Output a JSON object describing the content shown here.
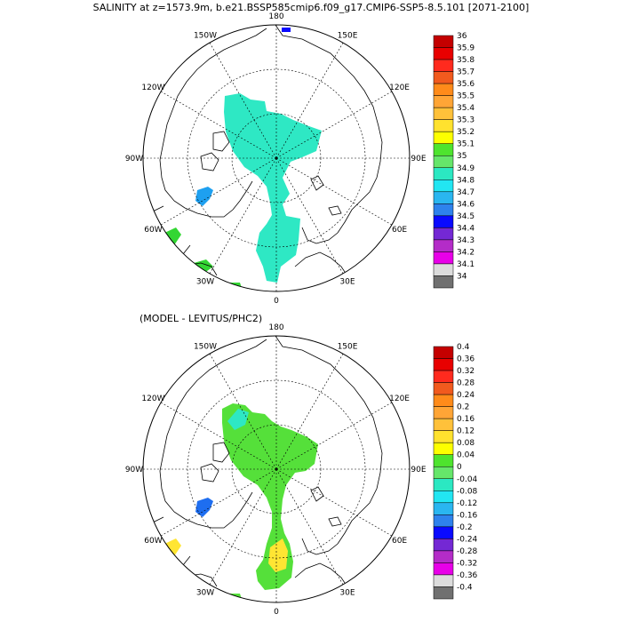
{
  "main_title": "SALINITY at z=1573.9m, b.e21.BSSP585cmip6.f09_g17.CMIP6-SSP5-8.5.101 [2071-2100]",
  "diff_title": "(MODEL - LEVITUS/PHC2)",
  "longitude_labels": [
    "180",
    "150E",
    "120E",
    "90E",
    "60E",
    "30E",
    "0",
    "30W",
    "60W",
    "90W",
    "120W",
    "150W"
  ],
  "top_colorbar": {
    "labels": [
      "36",
      "35.9",
      "35.8",
      "35.7",
      "35.6",
      "35.5",
      "35.4",
      "35.3",
      "35.2",
      "35.1",
      "35",
      "34.9",
      "34.8",
      "34.7",
      "34.6",
      "34.5",
      "34.4",
      "34.3",
      "34.2",
      "34.1",
      "34"
    ],
    "colors": [
      "#c40000",
      "#e80000",
      "#ff2a1e",
      "#f15a1e",
      "#ff8b1a",
      "#ffa536",
      "#ffc13a",
      "#ffe22e",
      "#fdff00",
      "#4ee42e",
      "#66e66a",
      "#2be8c2",
      "#22e6f2",
      "#2ab6f0",
      "#2e82ec",
      "#0a0aff",
      "#7428d4",
      "#b42cc8",
      "#e800e8",
      "#dcdcdc",
      "#707070"
    ]
  },
  "bottom_colorbar": {
    "labels": [
      "0.4",
      "0.36",
      "0.32",
      "0.28",
      "0.24",
      "0.2",
      "0.16",
      "0.12",
      "0.08",
      "0.04",
      "0",
      "-0.04",
      "-0.08",
      "-0.12",
      "-0.16",
      "-0.2",
      "-0.24",
      "-0.28",
      "-0.32",
      "-0.36",
      "-0.4"
    ],
    "colors": [
      "#c40000",
      "#e80000",
      "#ff2a1e",
      "#f15a1e",
      "#ff8b1a",
      "#ffa536",
      "#ffc13a",
      "#ffe22e",
      "#fdff00",
      "#4ee42e",
      "#66e66a",
      "#2be8c2",
      "#22e6f2",
      "#2ab6f0",
      "#2e82ec",
      "#0a0aff",
      "#7428d4",
      "#b42cc8",
      "#e800e8",
      "#dcdcdc",
      "#707070"
    ]
  },
  "fill_colors": {
    "top_main": "#2ee8c4",
    "top_light_blue": "#1ea0f0",
    "top_green": "#33d633",
    "top_blue": "#0a0aff",
    "bottom_main": "#55e03a",
    "bottom_cyan": "#2ee8c4",
    "bottom_yellow": "#ffe533",
    "bottom_blue": "#1e6ef0"
  }
}
